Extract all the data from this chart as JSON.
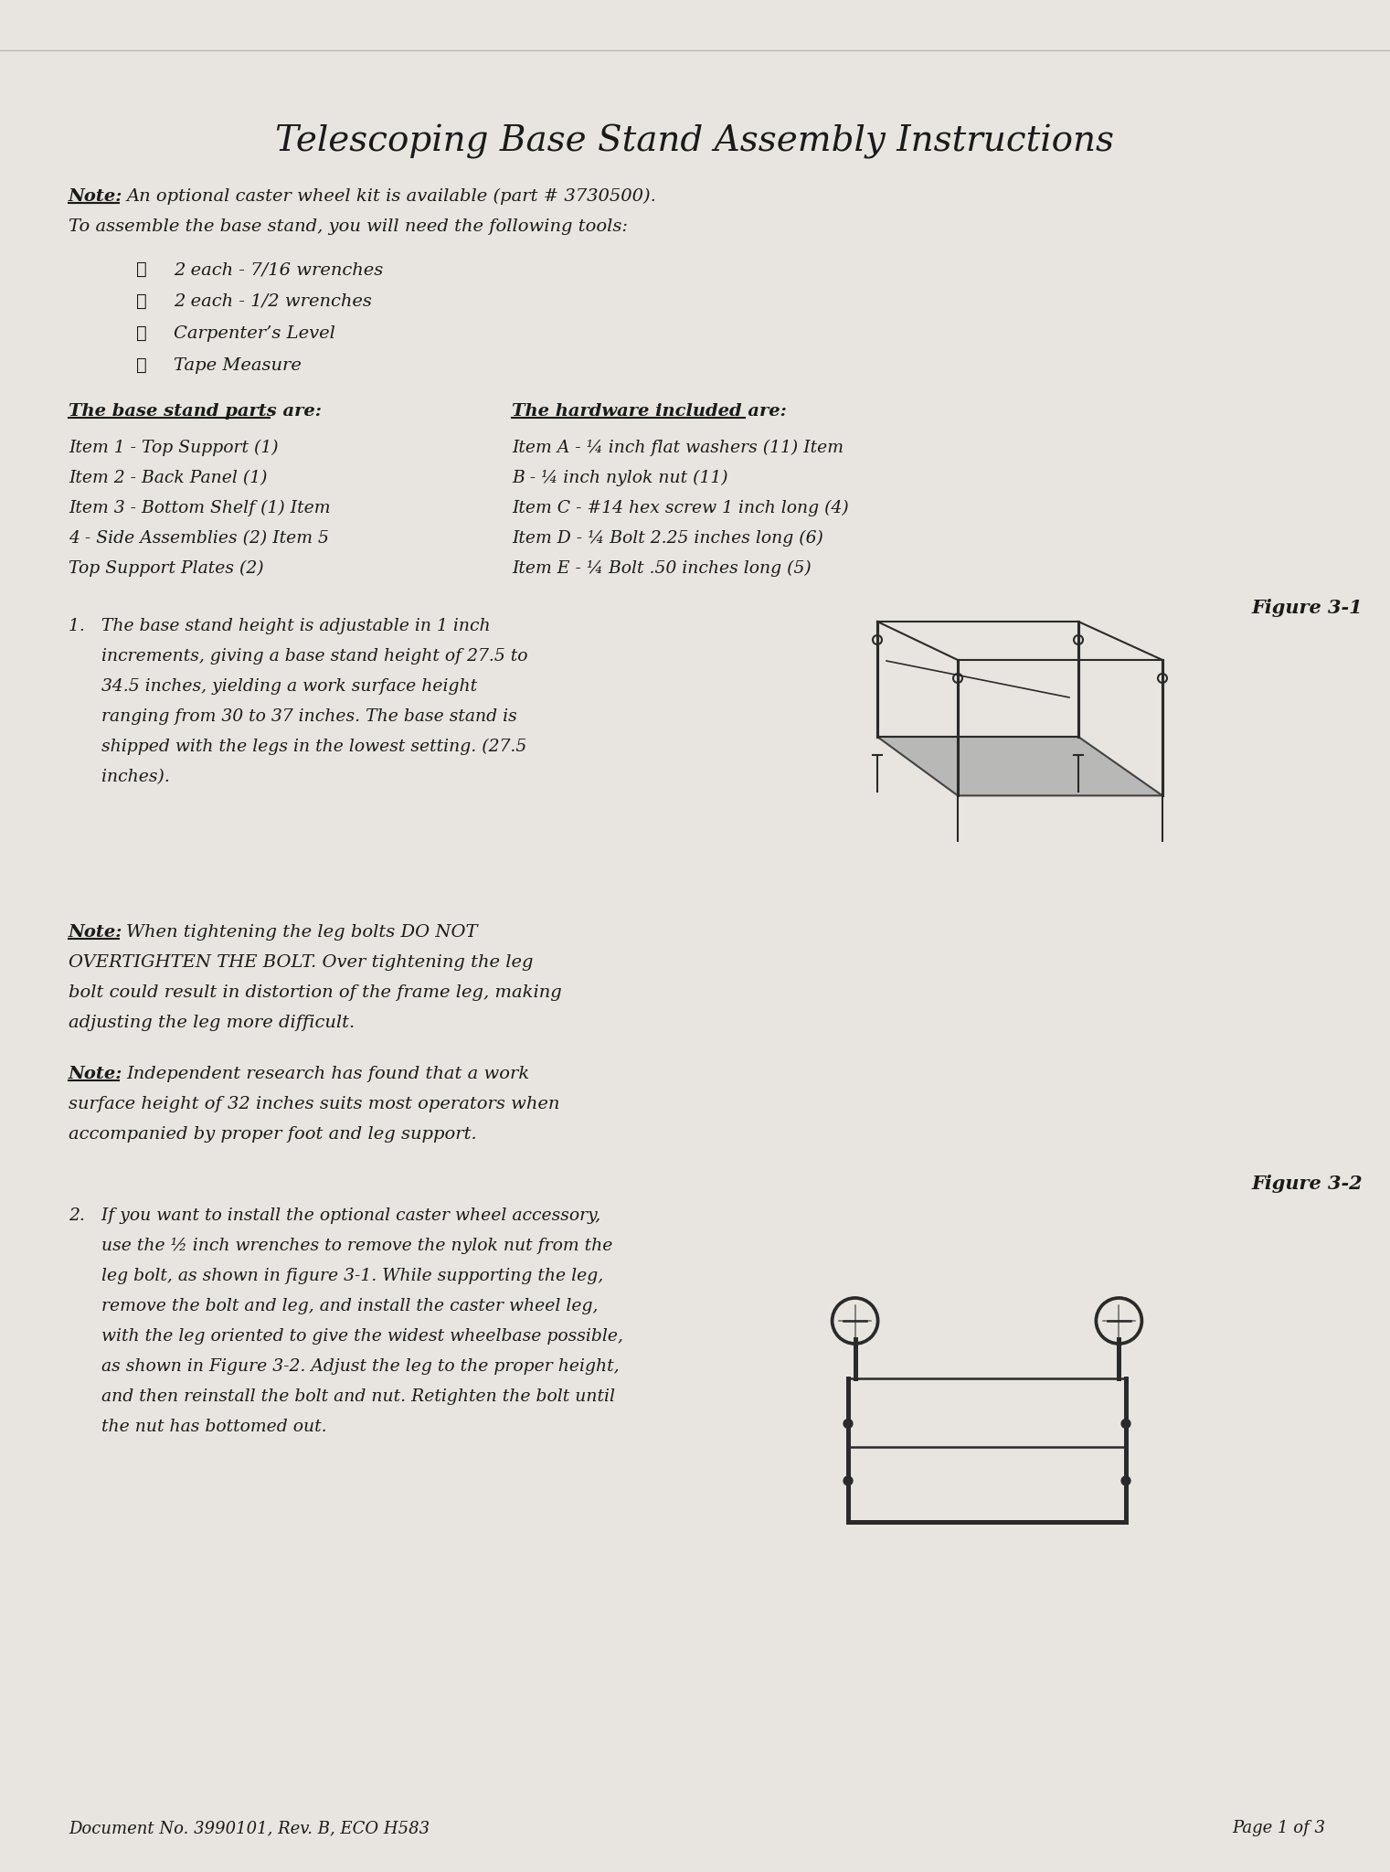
{
  "title": "Telescoping Base Stand Assembly Instructions",
  "bg_color": "#e8e5e0",
  "note1": "Note: An optional caster wheel kit is available (part # 3730500).",
  "note1_underline": "Note:",
  "line2": "To assemble the base stand, you will need the following tools:",
  "checklist": [
    "2 each - 7/16 wrenches",
    "2 each - 1/2 wrenches",
    "Carpenter’s Level",
    "Tape Measure"
  ],
  "parts_header": "The base stand parts are:",
  "hardware_header": "The hardware included are:",
  "parts_list": [
    "Item 1 - Top Support (1)",
    "Item 2 - Back Panel (1)",
    "Item 3 - Bottom Shelf (1) Item",
    "4 - Side Assemblies (2) Item 5",
    "Top Support Plates (2)"
  ],
  "hardware_list": [
    "Item A - ¼ inch flat washers (11) Item",
    "B - ¼ inch nylok nut (11)",
    "Item C - #14 hex screw 1 inch long (4)",
    "Item D - ¼ Bolt 2.25 inches long (6)",
    "Item E - ¼ Bolt .50 inches long (5)"
  ],
  "fig1_label": "Figure 3-1",
  "item1_text": [
    "1.   The base stand height is adjustable in 1 inch",
    "      increments, giving a base stand height of 27.5 to",
    "      34.5 inches, yielding a work surface height",
    "      ranging from 30 to 37 inches. The base stand is",
    "      shipped with the legs in the lowest setting. (27.5",
    "      inches)."
  ],
  "note2_head": "Note:",
  "note2_text": "Note: When tightening the leg bolts DO NOT\nOVERTIGHTEN THE BOLT. Over tightening the leg\nbolt could result in distortion of the frame leg, making\nadjusting the leg more difficult.",
  "note3_head": "Note:",
  "note3_text": "Note: Independent research has found that a work\nsurface height of 32 inches suits most operators when\naccompanied by proper foot and leg support.",
  "fig2_label": "Figure 3-2",
  "item2_text": [
    "2.   If you want to install the optional caster wheel accessory,",
    "      use the ½ inch wrenches to remove the nylok nut from the",
    "      leg bolt, as shown in figure 3-1. While supporting the leg,",
    "      remove the bolt and leg, and install the caster wheel leg,",
    "      with the leg oriented to give the widest wheelbase possible,",
    "      as shown in Figure 3-2. Adjust the leg to the proper height,",
    "      and then reinstall the bolt and nut. Retighten the bolt until",
    "      the nut has bottomed out."
  ],
  "footer_left": "Document No. 3990101, Rev. B, ECO H583",
  "footer_right": "Page 1 of 3"
}
